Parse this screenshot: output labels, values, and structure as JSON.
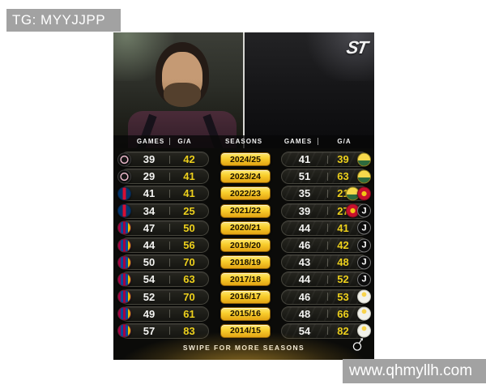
{
  "watermarks": {
    "top_left": "TG: MYYJJPP",
    "bottom_right": "www.qhmyllh.com"
  },
  "brand": {
    "logo_text": "ST"
  },
  "photos": {
    "left_player": "messi-portrait",
    "right_player": "ronaldo-portrait"
  },
  "table": {
    "header": {
      "games_left": "GAMES",
      "ga_left": "G/A",
      "seasons": "SEASONS",
      "games_right": "GAMES",
      "ga_right": "G/A"
    },
    "rows": [
      {
        "season": "2024/25",
        "left": {
          "games": "39",
          "ga": "42",
          "clubs": [
            "inter-miami"
          ]
        },
        "right": {
          "games": "41",
          "ga": "39",
          "clubs": [
            "al-nassr"
          ]
        }
      },
      {
        "season": "2023/24",
        "left": {
          "games": "29",
          "ga": "41",
          "clubs": [
            "inter-miami"
          ]
        },
        "right": {
          "games": "51",
          "ga": "63",
          "clubs": [
            "al-nassr"
          ]
        }
      },
      {
        "season": "2022/23",
        "left": {
          "games": "41",
          "ga": "41",
          "clubs": [
            "psg"
          ]
        },
        "right": {
          "games": "35",
          "ga": "21",
          "clubs": [
            "al-nassr",
            "man-utd"
          ]
        }
      },
      {
        "season": "2021/22",
        "left": {
          "games": "34",
          "ga": "25",
          "clubs": [
            "psg"
          ]
        },
        "right": {
          "games": "39",
          "ga": "27",
          "clubs": [
            "man-utd",
            "juventus"
          ]
        }
      },
      {
        "season": "2020/21",
        "left": {
          "games": "47",
          "ga": "50",
          "clubs": [
            "barcelona"
          ]
        },
        "right": {
          "games": "44",
          "ga": "41",
          "clubs": [
            "juventus"
          ]
        }
      },
      {
        "season": "2019/20",
        "left": {
          "games": "44",
          "ga": "56",
          "clubs": [
            "barcelona"
          ]
        },
        "right": {
          "games": "46",
          "ga": "42",
          "clubs": [
            "juventus"
          ]
        }
      },
      {
        "season": "2018/19",
        "left": {
          "games": "50",
          "ga": "70",
          "clubs": [
            "barcelona"
          ]
        },
        "right": {
          "games": "43",
          "ga": "48",
          "clubs": [
            "juventus"
          ]
        }
      },
      {
        "season": "2017/18",
        "left": {
          "games": "54",
          "ga": "63",
          "clubs": [
            "barcelona"
          ]
        },
        "right": {
          "games": "44",
          "ga": "52",
          "clubs": [
            "juventus"
          ]
        }
      },
      {
        "season": "2016/17",
        "left": {
          "games": "52",
          "ga": "70",
          "clubs": [
            "barcelona"
          ]
        },
        "right": {
          "games": "46",
          "ga": "53",
          "clubs": [
            "real-madrid"
          ]
        }
      },
      {
        "season": "2015/16",
        "left": {
          "games": "49",
          "ga": "61",
          "clubs": [
            "barcelona"
          ]
        },
        "right": {
          "games": "48",
          "ga": "66",
          "clubs": [
            "real-madrid"
          ]
        }
      },
      {
        "season": "2014/15",
        "left": {
          "games": "57",
          "ga": "83",
          "clubs": [
            "barcelona"
          ]
        },
        "right": {
          "games": "54",
          "ga": "82",
          "clubs": [
            "real-madrid"
          ]
        }
      }
    ]
  },
  "footer": {
    "swipe_text": "SWIPE FOR MORE SEASONS"
  },
  "icons": {
    "juventus_letter": "J",
    "swipe": "swipe-hand-icon"
  },
  "colors": {
    "accent_gold": "#f8cd2c",
    "number_yellow": "#edd01c",
    "number_white": "#f4f4f2",
    "graphic_bg": "#0b0b09",
    "watermark_gray": "#a2a2a2",
    "page_bg": "#ffffff"
  }
}
